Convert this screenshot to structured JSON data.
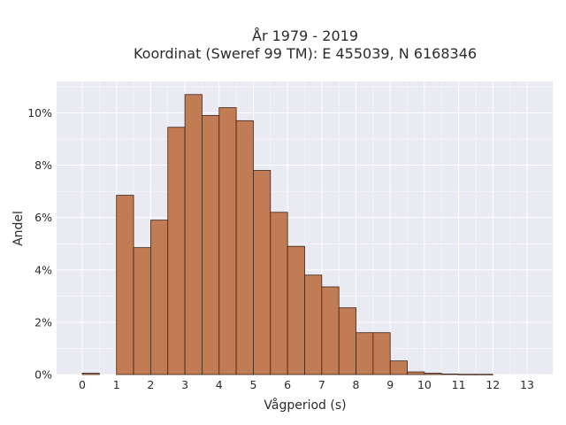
{
  "chart_data": {
    "type": "bar",
    "title": [
      "År 1979 - 2019",
      "Koordinat (Sweref 99 TM): E 455039, N 6168346"
    ],
    "xlabel": "Vågperiod (s)",
    "ylabel": "Andel",
    "x_ticks": [
      0,
      1,
      2,
      3,
      4,
      5,
      6,
      7,
      8,
      9,
      10,
      11,
      12,
      13
    ],
    "x_tick_labels": [
      "0",
      "1",
      "2",
      "3",
      "4",
      "5",
      "6",
      "7",
      "8",
      "9",
      "10",
      "11",
      "12",
      "13"
    ],
    "y_ticks": [
      0,
      2,
      4,
      6,
      8,
      10
    ],
    "y_tick_labels": [
      "0%",
      "2%",
      "4%",
      "6%",
      "8%",
      "10%"
    ],
    "xlim": [
      -0.75,
      13.75
    ],
    "ylim": [
      0,
      11.2
    ],
    "bin_width": 0.5,
    "bin_starts": [
      0,
      1,
      1.5,
      2,
      2.5,
      3,
      3.5,
      4,
      4.5,
      5,
      5.5,
      6,
      6.5,
      7,
      7.5,
      8,
      8.5,
      9,
      9.5,
      10,
      10.5,
      11,
      11.5
    ],
    "values": [
      0.05,
      6.85,
      4.85,
      5.9,
      9.45,
      10.7,
      9.9,
      10.2,
      9.7,
      7.8,
      6.2,
      4.9,
      3.8,
      3.35,
      2.55,
      1.6,
      1.6,
      0.52,
      0.1,
      0.05,
      0.02,
      0.01,
      0.01
    ],
    "grid": true,
    "colors": {
      "bar": "#c17c56",
      "bar_edge": "#3d2415",
      "plot_bg": "#eaeaf2",
      "grid": "#ffffff"
    }
  }
}
